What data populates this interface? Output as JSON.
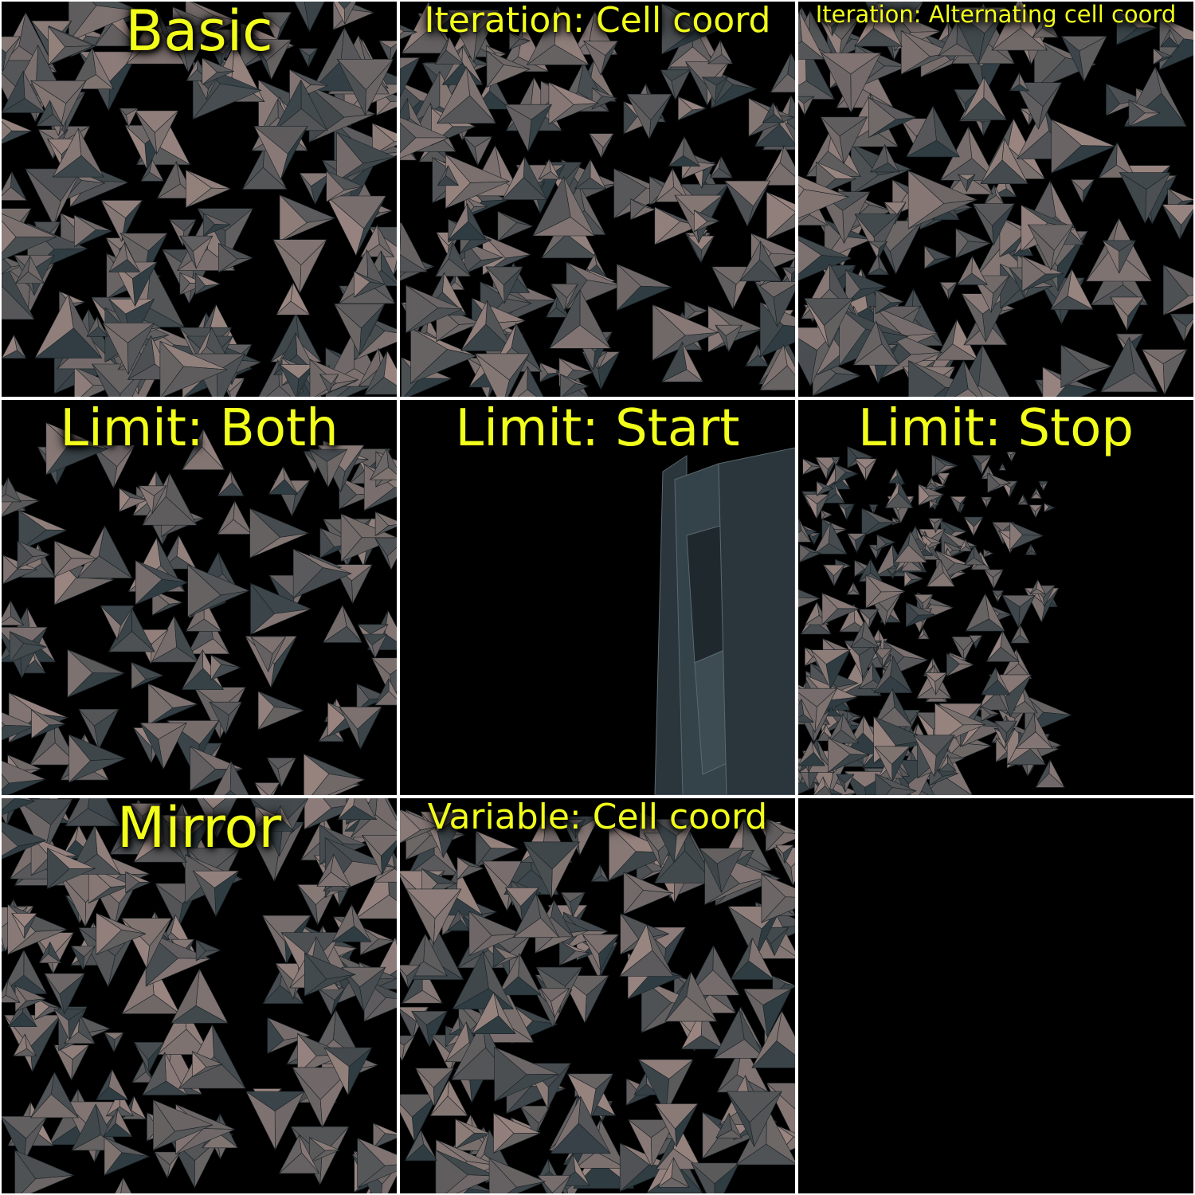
{
  "panels": [
    {
      "caption": "Basic",
      "scene": "dense"
    },
    {
      "caption": "Iteration: Cell coord",
      "scene": "columns"
    },
    {
      "caption": "Iteration: Alternating cell coord",
      "scene": "alternating"
    },
    {
      "caption": "Limit: Both",
      "scene": "sparse"
    },
    {
      "caption": "Limit: Start",
      "scene": "wall"
    },
    {
      "caption": "Limit: Stop",
      "scene": "tunnel"
    },
    {
      "caption": "Mirror",
      "scene": "mirror"
    },
    {
      "caption": "Variable: Cell coord",
      "scene": "columns"
    },
    {
      "caption": "",
      "scene": "empty"
    }
  ],
  "colors": {
    "background": "#000000",
    "caption": "#f2ff1a",
    "tile_light": "#9a8580",
    "tile_dark": "#2f3c42",
    "separator": "#ffffff"
  }
}
